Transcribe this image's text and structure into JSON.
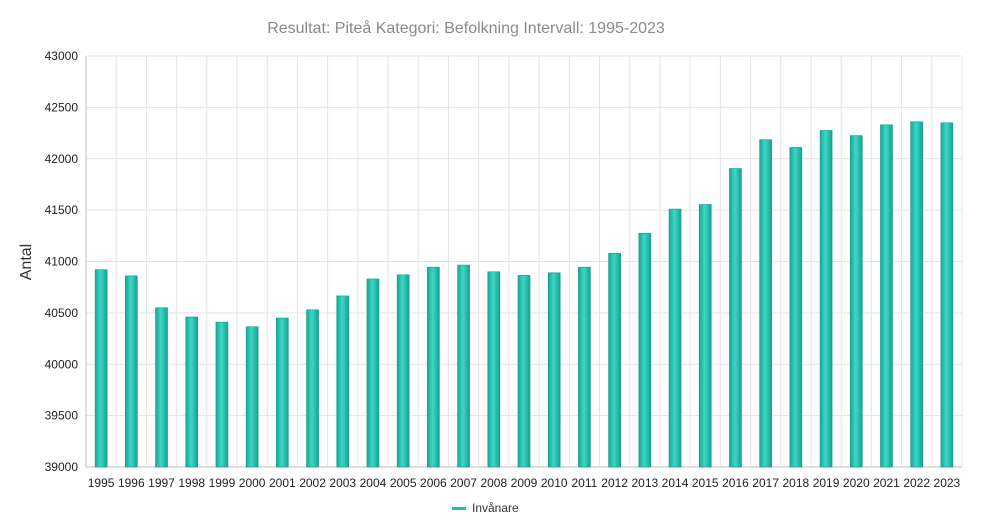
{
  "chart_data": {
    "type": "bar",
    "title": "Resultat: Piteå Kategori: Befolkning Intervall: 1995-2023",
    "xlabel": "",
    "ylabel": "Antal",
    "ylim": [
      39000,
      43000
    ],
    "yticks": [
      39000,
      39500,
      40000,
      40500,
      41000,
      41500,
      42000,
      42500,
      43000
    ],
    "grid": true,
    "legend_position": "bottom",
    "categories": [
      "1995",
      "1996",
      "1997",
      "1998",
      "1999",
      "2000",
      "2001",
      "2002",
      "2003",
      "2004",
      "2005",
      "2006",
      "2007",
      "2008",
      "2009",
      "2010",
      "2011",
      "2012",
      "2013",
      "2014",
      "2015",
      "2016",
      "2017",
      "2018",
      "2019",
      "2020",
      "2021",
      "2022",
      "2023"
    ],
    "series": [
      {
        "name": "Invånare",
        "color": "#1fbfae",
        "values": [
          40920,
          40860,
          40550,
          40460,
          40410,
          40365,
          40450,
          40530,
          40665,
          40830,
          40870,
          40945,
          40965,
          40900,
          40865,
          40890,
          40945,
          41080,
          41275,
          41510,
          41555,
          41905,
          42185,
          42110,
          42275,
          42225,
          42330,
          42360,
          42350
        ]
      }
    ]
  }
}
